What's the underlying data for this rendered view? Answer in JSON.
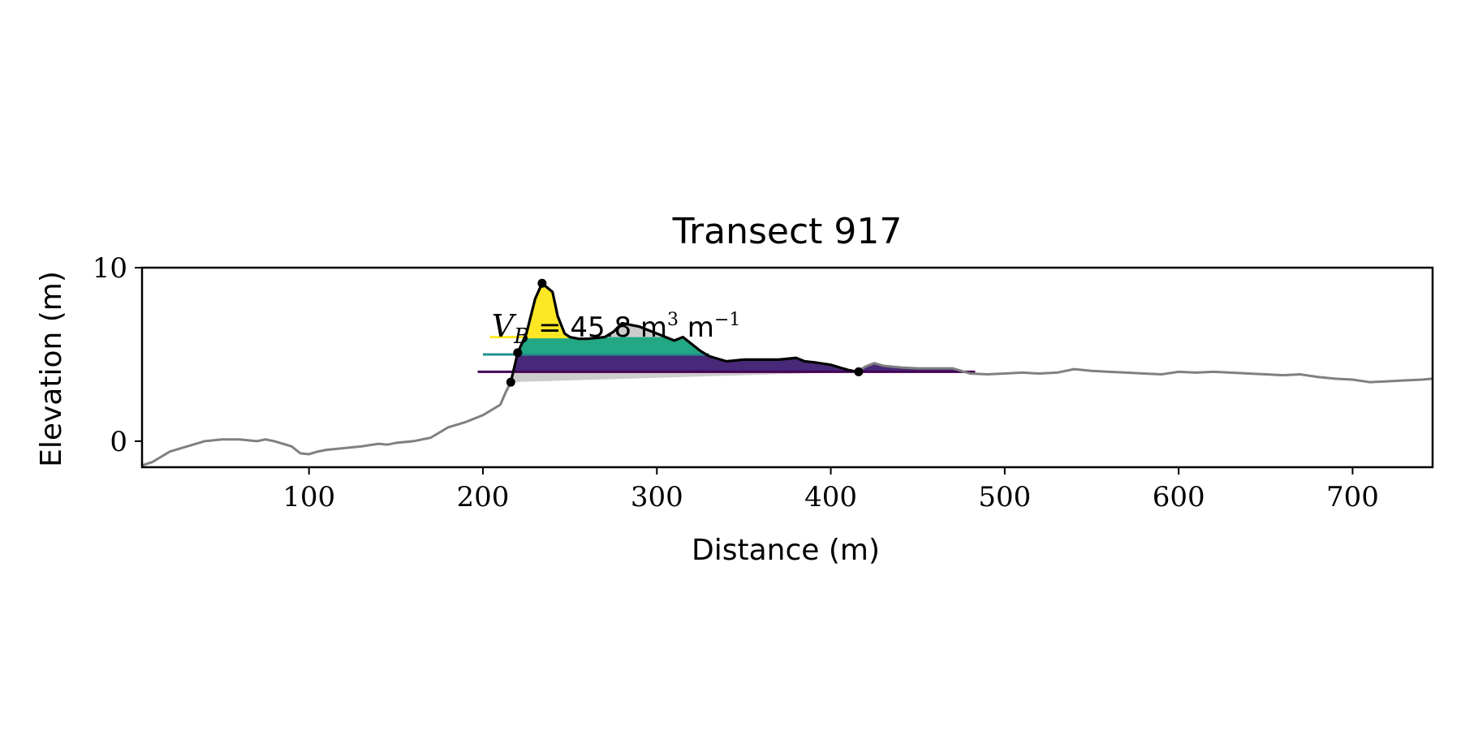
{
  "chart_data": {
    "type": "area",
    "title": "Transect 917",
    "xlabel": "Distance (m)",
    "ylabel": "Elevation (m)",
    "xlim": [
      4,
      746
    ],
    "ylim": [
      -1.5,
      10
    ],
    "xticks": [
      100,
      200,
      300,
      400,
      500,
      600,
      700
    ],
    "yticks": [
      0,
      10
    ],
    "grid": false,
    "legend": "none",
    "colors": {
      "profile": "#808080",
      "dune_outline": "#000000",
      "below_base_fill": "#cccccc",
      "level_low": "#440154",
      "level_low_fill": "#482878",
      "level_mid": "#21918c",
      "level_mid_fill": "#22a884",
      "level_high": "#fde725"
    },
    "series": [
      {
        "role": "profile",
        "x": [
          4,
          10,
          20,
          30,
          40,
          50,
          60,
          70,
          75,
          80,
          90,
          95,
          100,
          105,
          110,
          120,
          130,
          140,
          145,
          150,
          160,
          170,
          180,
          190,
          200,
          210,
          213,
          216,
          220,
          225,
          230,
          234,
          240,
          243,
          247,
          250,
          255,
          260,
          270,
          275,
          280,
          290,
          300,
          310,
          315,
          320,
          325,
          330,
          340,
          350,
          360,
          370,
          380,
          385,
          390,
          400,
          405,
          410,
          415,
          420,
          425,
          430,
          440,
          450,
          460,
          470,
          480,
          490,
          500,
          510,
          520,
          530,
          540,
          550,
          560,
          570,
          580,
          590,
          600,
          610,
          620,
          630,
          640,
          650,
          660,
          670,
          680,
          690,
          700,
          710,
          720,
          730,
          740,
          746
        ],
        "y": [
          -1.4,
          -1.2,
          -0.6,
          -0.3,
          0,
          0.1,
          0.1,
          0,
          0.1,
          0,
          -0.3,
          -0.7,
          -0.75,
          -0.6,
          -0.5,
          -0.4,
          -0.3,
          -0.15,
          -0.2,
          -0.1,
          0,
          0.2,
          0.8,
          1.1,
          1.5,
          2.1,
          2.8,
          3.4,
          5.1,
          6.2,
          8.2,
          9.1,
          8.6,
          7.2,
          6.2,
          6.0,
          5.9,
          5.9,
          6.0,
          6.3,
          6.8,
          6.6,
          6.2,
          5.8,
          6.0,
          5.6,
          5.2,
          4.9,
          4.6,
          4.7,
          4.7,
          4.7,
          4.8,
          4.6,
          4.55,
          4.4,
          4.25,
          4.1,
          4.0,
          4.3,
          4.5,
          4.35,
          4.25,
          4.2,
          4.2,
          4.2,
          3.9,
          3.85,
          3.9,
          3.95,
          3.9,
          3.95,
          4.15,
          4.05,
          4.0,
          3.95,
          3.9,
          3.85,
          4.0,
          3.95,
          4.0,
          3.95,
          3.9,
          3.85,
          3.8,
          3.85,
          3.7,
          3.6,
          3.55,
          3.4,
          3.45,
          3.5,
          3.55,
          3.6
        ]
      }
    ],
    "dune_toe": {
      "x": 216,
      "y": 3.4
    },
    "dune_crest": {
      "x": 234,
      "y": 9.1
    },
    "dune_heel": {
      "x": 416,
      "y": 4.0
    },
    "level_marker": {
      "x": 220,
      "y": 5.1
    },
    "levels": [
      {
        "name": "low",
        "y": 4.0,
        "x_start": 197,
        "x_end": 483
      },
      {
        "name": "mid",
        "y": 5.0,
        "x_start": 200,
        "x_end": 330
      },
      {
        "name": "high",
        "y": 6.0,
        "x_start": 204,
        "x_end": 250
      }
    ],
    "annotation": {
      "symbol": "V",
      "subscript": "B",
      "value_text": "= 45.8 m",
      "exp1": "3",
      "unit2": "m",
      "exp2": "−1",
      "x": 205,
      "y": 6.3
    }
  }
}
